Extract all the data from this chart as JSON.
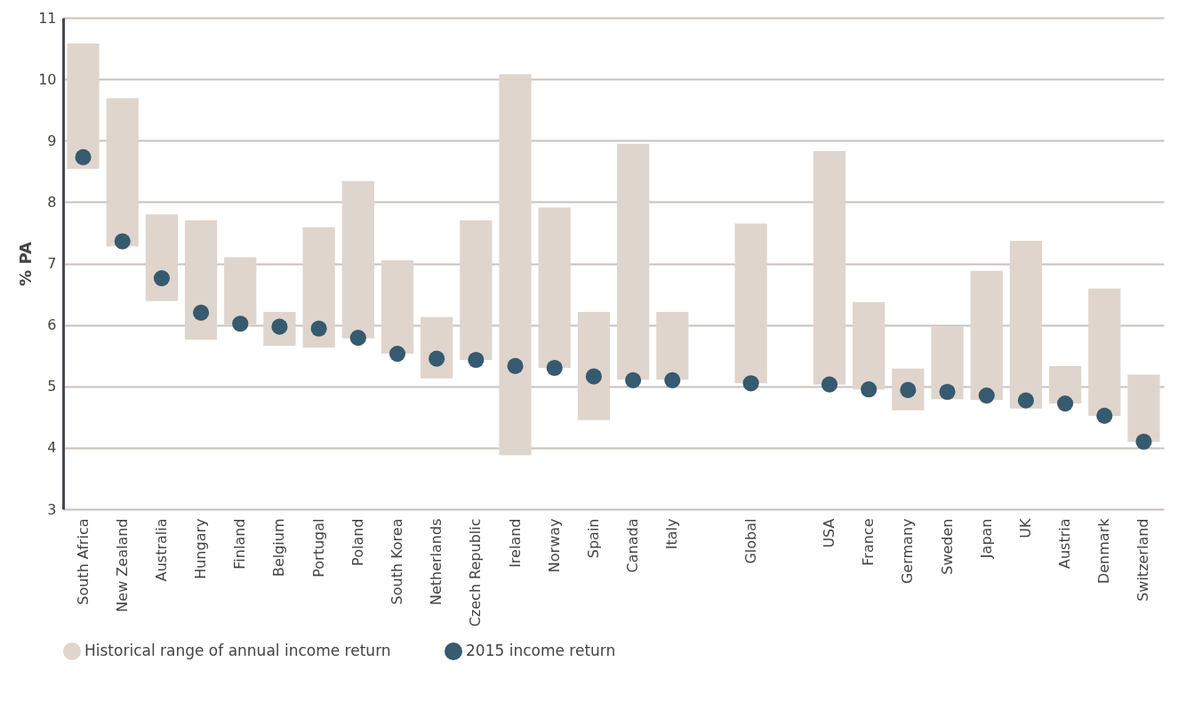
{
  "chart_data": {
    "type": "bar",
    "ylabel": "% PA",
    "categories": [
      "South Africa",
      "New Zealand",
      "Australia",
      "Hungary",
      "Finland",
      "Belgium",
      "Portugal",
      "Poland",
      "South Korea",
      "Netherlands",
      "Czech Republic",
      "Ireland",
      "Norway",
      "Spain",
      "Canada",
      "Italy",
      null,
      "Global",
      null,
      "USA",
      "France",
      "Germany",
      "Sweden",
      "Japan",
      "UK",
      "Austria",
      "Denmark",
      "Switzerland"
    ],
    "series": [
      {
        "name": "Historical range of annual income return",
        "color": "#dfd5cc",
        "base": [
          8.54,
          7.28,
          6.39,
          5.76,
          6.01,
          5.66,
          5.63,
          5.78,
          5.53,
          5.13,
          5.43,
          3.88,
          5.3,
          4.45,
          5.11,
          5.11,
          null,
          5.05,
          null,
          5.03,
          4.95,
          4.61,
          4.79,
          4.78,
          4.64,
          4.72,
          4.52,
          4.1
        ],
        "values": [
          2.04,
          2.41,
          1.41,
          1.94,
          1.09,
          0.55,
          1.96,
          2.56,
          1.52,
          1.0,
          2.27,
          6.2,
          2.61,
          1.76,
          3.84,
          1.1,
          null,
          2.6,
          null,
          3.8,
          1.42,
          0.68,
          1.18,
          2.1,
          2.73,
          0.61,
          2.07,
          1.09
        ]
      },
      {
        "name": "2015 income return",
        "type": "scatter",
        "color": "#365a6f",
        "values": [
          8.73,
          7.36,
          6.76,
          6.2,
          6.02,
          5.97,
          5.94,
          5.79,
          5.53,
          5.45,
          5.43,
          5.33,
          5.3,
          5.16,
          5.1,
          5.1,
          null,
          5.05,
          null,
          5.03,
          4.95,
          4.94,
          4.91,
          4.85,
          4.77,
          4.72,
          4.52,
          4.1
        ]
      }
    ],
    "ylim": [
      3,
      11
    ],
    "yticks": [
      3,
      4,
      5,
      6,
      7,
      8,
      9,
      10,
      11
    ],
    "grid": "y",
    "legend": "bottom",
    "marker": "circle"
  }
}
